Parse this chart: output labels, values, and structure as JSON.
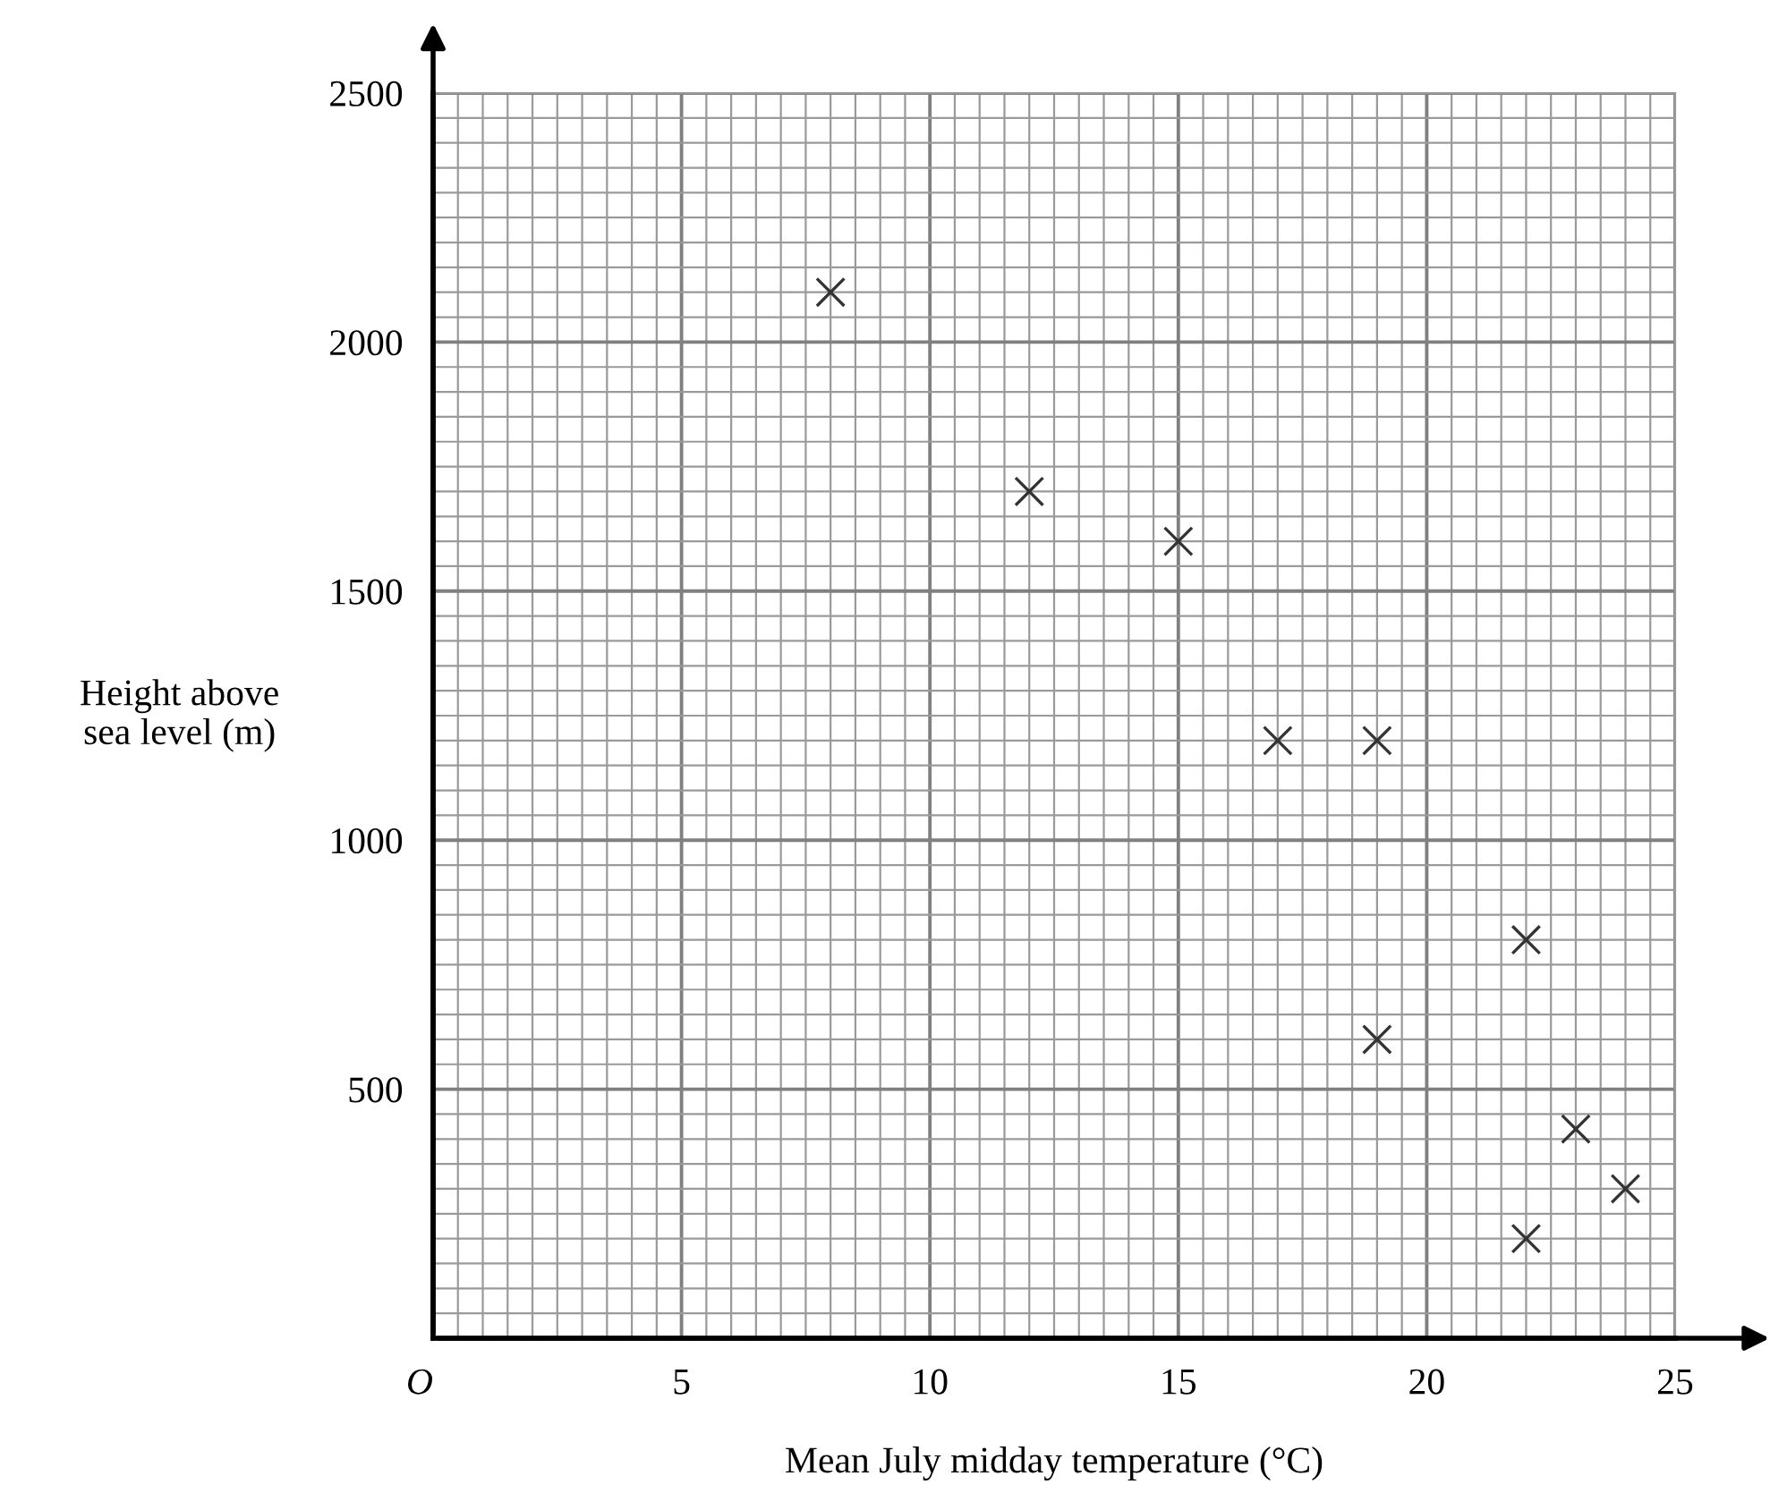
{
  "chart_data": {
    "type": "scatter",
    "xlabel": "Mean July midday temperature (°C)",
    "ylabel": "Height above\nsea level (m)",
    "x": [
      8,
      12,
      15,
      17,
      19,
      22,
      19,
      23,
      24,
      22
    ],
    "values": [
      2100,
      1700,
      1600,
      1200,
      1200,
      800,
      600,
      420,
      300,
      200
    ],
    "color": "#333333",
    "marker": "cross",
    "xlim": [
      0,
      25
    ],
    "ylim": [
      0,
      2500
    ],
    "xticks": [
      {
        "value": 0,
        "label": "O"
      },
      5,
      10,
      15,
      20,
      25
    ],
    "yticks": [
      500,
      1000,
      1500,
      2000,
      2500
    ],
    "grid": true
  }
}
